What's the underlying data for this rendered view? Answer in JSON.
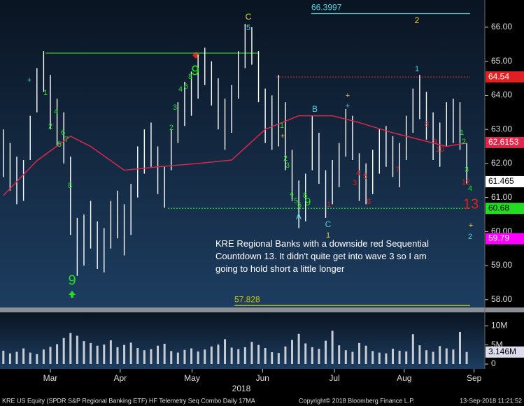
{
  "chart_data": {
    "type": "ohlc",
    "high": [
      63.0,
      62.6,
      62.2,
      62.1,
      63.4,
      64.8,
      65.3,
      64.6,
      63.9,
      63.5,
      62.2,
      60.4,
      60.5,
      60.9,
      60.3,
      60.1,
      60.9,
      61.2,
      60.8,
      61.4,
      62.5,
      63.0,
      63.2,
      62.5,
      61.9,
      63.0,
      63.8,
      64.4,
      64.7,
      65.2,
      65.4,
      65.0,
      64.5,
      63.9,
      64.3,
      65.3,
      66.1,
      66.0,
      65.3,
      64.2,
      64.0,
      64.6,
      63.8,
      62.4,
      61.5,
      61.7,
      63.4,
      62.9,
      61.8,
      62.1,
      62.6,
      63.6,
      63.4,
      62.3,
      62.0,
      62.4,
      63.0,
      63.1,
      62.8,
      62.6,
      63.4,
      64.2,
      64.6,
      64.1,
      63.5,
      63.2,
      63.8,
      63.9,
      63.8,
      62.6
    ],
    "low": [
      61.6,
      61.2,
      60.8,
      60.9,
      62.1,
      63.5,
      64.1,
      63.0,
      62.5,
      62.0,
      59.9,
      58.7,
      59.0,
      59.5,
      58.9,
      58.8,
      59.5,
      59.8,
      59.3,
      59.9,
      61.0,
      61.7,
      61.9,
      61.1,
      60.7,
      61.8,
      62.6,
      63.1,
      63.4,
      63.9,
      64.3,
      63.7,
      63.0,
      62.4,
      62.9,
      63.9,
      64.8,
      64.9,
      63.8,
      62.6,
      62.4,
      62.5,
      61.8,
      60.9,
      60.1,
      60.3,
      61.8,
      61.4,
      60.4,
      60.8,
      61.3,
      62.2,
      62.1,
      60.9,
      60.8,
      61.1,
      61.7,
      61.9,
      61.6,
      61.3,
      62.1,
      62.9,
      63.3,
      62.7,
      62.1,
      61.9,
      62.5,
      62.6,
      62.4,
      61.4
    ],
    "bar_color": "#ffffff",
    "moving_average": {
      "color": "#d8284a",
      "x": [
        0,
        5,
        10,
        13,
        18,
        23,
        29,
        34,
        39,
        44,
        49,
        53,
        58,
        62,
        66,
        69
      ],
      "values": [
        61.06,
        62.08,
        62.8,
        62.5,
        61.8,
        61.9,
        62.0,
        62.1,
        63.0,
        63.4,
        63.4,
        63.2,
        62.9,
        62.7,
        62.5,
        62.6
      ]
    },
    "xlim": [
      -0.5,
      71.7
    ],
    "xticks": [
      {
        "value": 7,
        "label": "Mar"
      },
      {
        "value": 17.4,
        "label": "Apr"
      },
      {
        "value": 28.1,
        "label": "May"
      },
      {
        "value": 38.6,
        "label": "Jun"
      },
      {
        "value": 49.3,
        "label": "Jul"
      },
      {
        "value": 59.7,
        "label": "Aug"
      },
      {
        "value": 70.1,
        "label": "Sep"
      }
    ],
    "year_label": "2018",
    "ylim": [
      57.77,
      66.8
    ],
    "yticks": [
      {
        "value": 58,
        "label": "58.00"
      },
      {
        "value": 59,
        "label": "59.00"
      },
      {
        "value": 60,
        "label": "60.00"
      },
      {
        "value": 61,
        "label": "61.00"
      },
      {
        "value": 62,
        "label": "62.00"
      },
      {
        "value": 63,
        "label": "63.00"
      },
      {
        "value": 64,
        "label": "64.00"
      },
      {
        "value": 65,
        "label": "65.00"
      },
      {
        "value": 66,
        "label": "66.00"
      }
    ],
    "levels": [
      {
        "value": 66.3997,
        "color": "#4fd6e0",
        "style": "solid",
        "label": "left"
      },
      {
        "value": 64.54,
        "color": "#e02020",
        "style": "dotted",
        "label": "box"
      },
      {
        "value": 65.24,
        "color": "#2ecc2e",
        "style": "solid"
      },
      {
        "value": 60.68,
        "color": "#22dd22",
        "style": "dotted",
        "label": "box"
      },
      {
        "value": 57.828,
        "color": "#c8c800",
        "style": "solid",
        "label": "left"
      }
    ],
    "price_boxes": [
      {
        "value": 62.6153,
        "color": "#e0264a"
      },
      {
        "value": 61.465,
        "color": "#ffffff"
      },
      {
        "value": 59.79,
        "color": "#ff00ff"
      }
    ],
    "annotations": [
      {
        "text": "1",
        "color": "#22dd22"
      },
      {
        "text": "2",
        "color": "#22dd22"
      },
      {
        "text": "4",
        "color": "#22dd22"
      },
      {
        "text": "5",
        "color": "#22dd22"
      },
      {
        "text": "6",
        "color": "#22dd22"
      },
      {
        "text": "7",
        "color": "#22dd22"
      },
      {
        "text": "8",
        "color": "#22dd22"
      },
      {
        "text": "9",
        "color": "#22dd22"
      },
      {
        "text": "2",
        "color": "#22dd22"
      },
      {
        "text": "3",
        "color": "#22dd22"
      },
      {
        "text": "4",
        "color": "#22dd22"
      },
      {
        "text": "6",
        "color": "#22dd22"
      },
      {
        "text": "8",
        "color": "#22dd22"
      },
      {
        "text": "9",
        "color": "#22dd22"
      },
      {
        "text": "1",
        "color": "#22dd22"
      },
      {
        "text": "2",
        "color": "#22dd22"
      },
      {
        "text": "3",
        "color": "#22dd22"
      },
      {
        "text": "4",
        "color": "#22dd22"
      },
      {
        "text": "5",
        "color": "#22dd22"
      },
      {
        "text": "6",
        "color": "#22dd22"
      },
      {
        "text": "8",
        "color": "#22dd22"
      },
      {
        "text": "9",
        "color": "#22dd22"
      },
      {
        "text": "1",
        "color": "#22dd22"
      },
      {
        "text": "2",
        "color": "#22dd22"
      },
      {
        "text": "3",
        "color": "#22dd22"
      },
      {
        "text": "4",
        "color": "#22dd22"
      },
      {
        "text": "3",
        "color": "#e02020"
      },
      {
        "text": "4",
        "color": "#e02020"
      },
      {
        "text": "5",
        "color": "#e02020"
      },
      {
        "text": "6",
        "color": "#e02020"
      },
      {
        "text": "7",
        "color": "#e02020"
      },
      {
        "text": "8",
        "color": "#e02020"
      },
      {
        "text": "9",
        "color": "#e02020"
      },
      {
        "text": "10",
        "color": "#e02020"
      },
      {
        "text": "12",
        "color": "#e02020"
      },
      {
        "text": "13",
        "color": "#e02020"
      },
      {
        "text": "1",
        "color": "#e02020"
      },
      {
        "text": "C",
        "color": "#e8d040"
      },
      {
        "text": "2",
        "color": "#e8d040"
      },
      {
        "text": "+",
        "color": "#e8d040"
      },
      {
        "text": "+",
        "color": "#e8d040"
      },
      {
        "text": "+",
        "color": "#e8d040"
      },
      {
        "text": "1",
        "color": "#e8d040"
      },
      {
        "text": "5",
        "color": "#4fd6e0"
      },
      {
        "text": "1",
        "color": "#4fd6e0"
      },
      {
        "text": "B",
        "color": "#4fd6e0"
      },
      {
        "text": "+",
        "color": "#4fd6e0"
      },
      {
        "text": "+",
        "color": "#4fd6e0"
      },
      {
        "text": "A",
        "color": "#4fd6e0"
      },
      {
        "text": "C",
        "color": "#4fd6e0"
      },
      {
        "text": "2",
        "color": "#4fd6e0"
      }
    ],
    "note": "KRE Regional Banks with a downside red Sequential Countdown 13.  It didn't quite get into wave 3 so I am going to hold short a little longer",
    "volume": {
      "color": "#c8ccd4",
      "values": [
        3.5,
        2.8,
        3.2,
        4.1,
        3.0,
        2.6,
        3.8,
        4.5,
        5.2,
        6.8,
        8.1,
        7.4,
        6.0,
        5.5,
        4.8,
        5.1,
        6.2,
        4.4,
        5.0,
        5.6,
        4.2,
        3.6,
        3.9,
        4.8,
        5.3,
        3.4,
        3.0,
        3.7,
        4.1,
        3.3,
        3.8,
        4.6,
        5.1,
        6.5,
        4.3,
        3.9,
        4.4,
        5.8,
        5.0,
        4.2,
        3.1,
        2.9,
        4.6,
        6.3,
        7.9,
        5.4,
        4.4,
        4.0,
        6.1,
        8.7,
        4.9,
        3.6,
        3.2,
        5.5,
        4.8,
        3.4,
        3.0,
        2.8,
        4.0,
        3.5,
        3.3,
        7.8,
        4.9,
        3.6,
        3.2,
        4.7,
        4.1,
        3.8,
        8.4,
        3.146
      ],
      "value_labels": [
        null,
        null,
        null,
        null,
        null,
        null,
        null,
        null,
        null,
        null,
        null,
        null,
        null,
        null,
        null,
        null,
        null,
        null,
        null,
        null,
        null,
        null,
        null,
        null,
        null,
        null,
        null,
        null,
        null,
        null,
        null,
        null,
        null,
        null,
        null,
        null,
        null,
        null,
        null,
        null,
        null,
        null,
        null,
        null,
        null,
        null,
        null,
        null,
        null,
        null,
        null,
        null,
        null,
        null,
        null,
        null,
        null,
        null,
        null,
        null,
        null,
        null,
        null,
        null,
        null,
        null,
        null,
        null,
        null,
        "3.146M"
      ],
      "ylim": [
        0,
        12.6
      ],
      "yticks": [
        {
          "value": 0,
          "label": "0"
        },
        {
          "value": 5,
          "label": "5M"
        },
        {
          "value": 10,
          "label": "10M"
        }
      ]
    },
    "footer_left": "KRE US Equity (SPDR S&P Regional Banking ETF) HF Telemetry Seq Combo  Daily 17MA",
    "copyright": "Copyright© 2018 Bloomberg Finance L.P.",
    "timestamp": "13-Sep-2018 11:21:52"
  }
}
